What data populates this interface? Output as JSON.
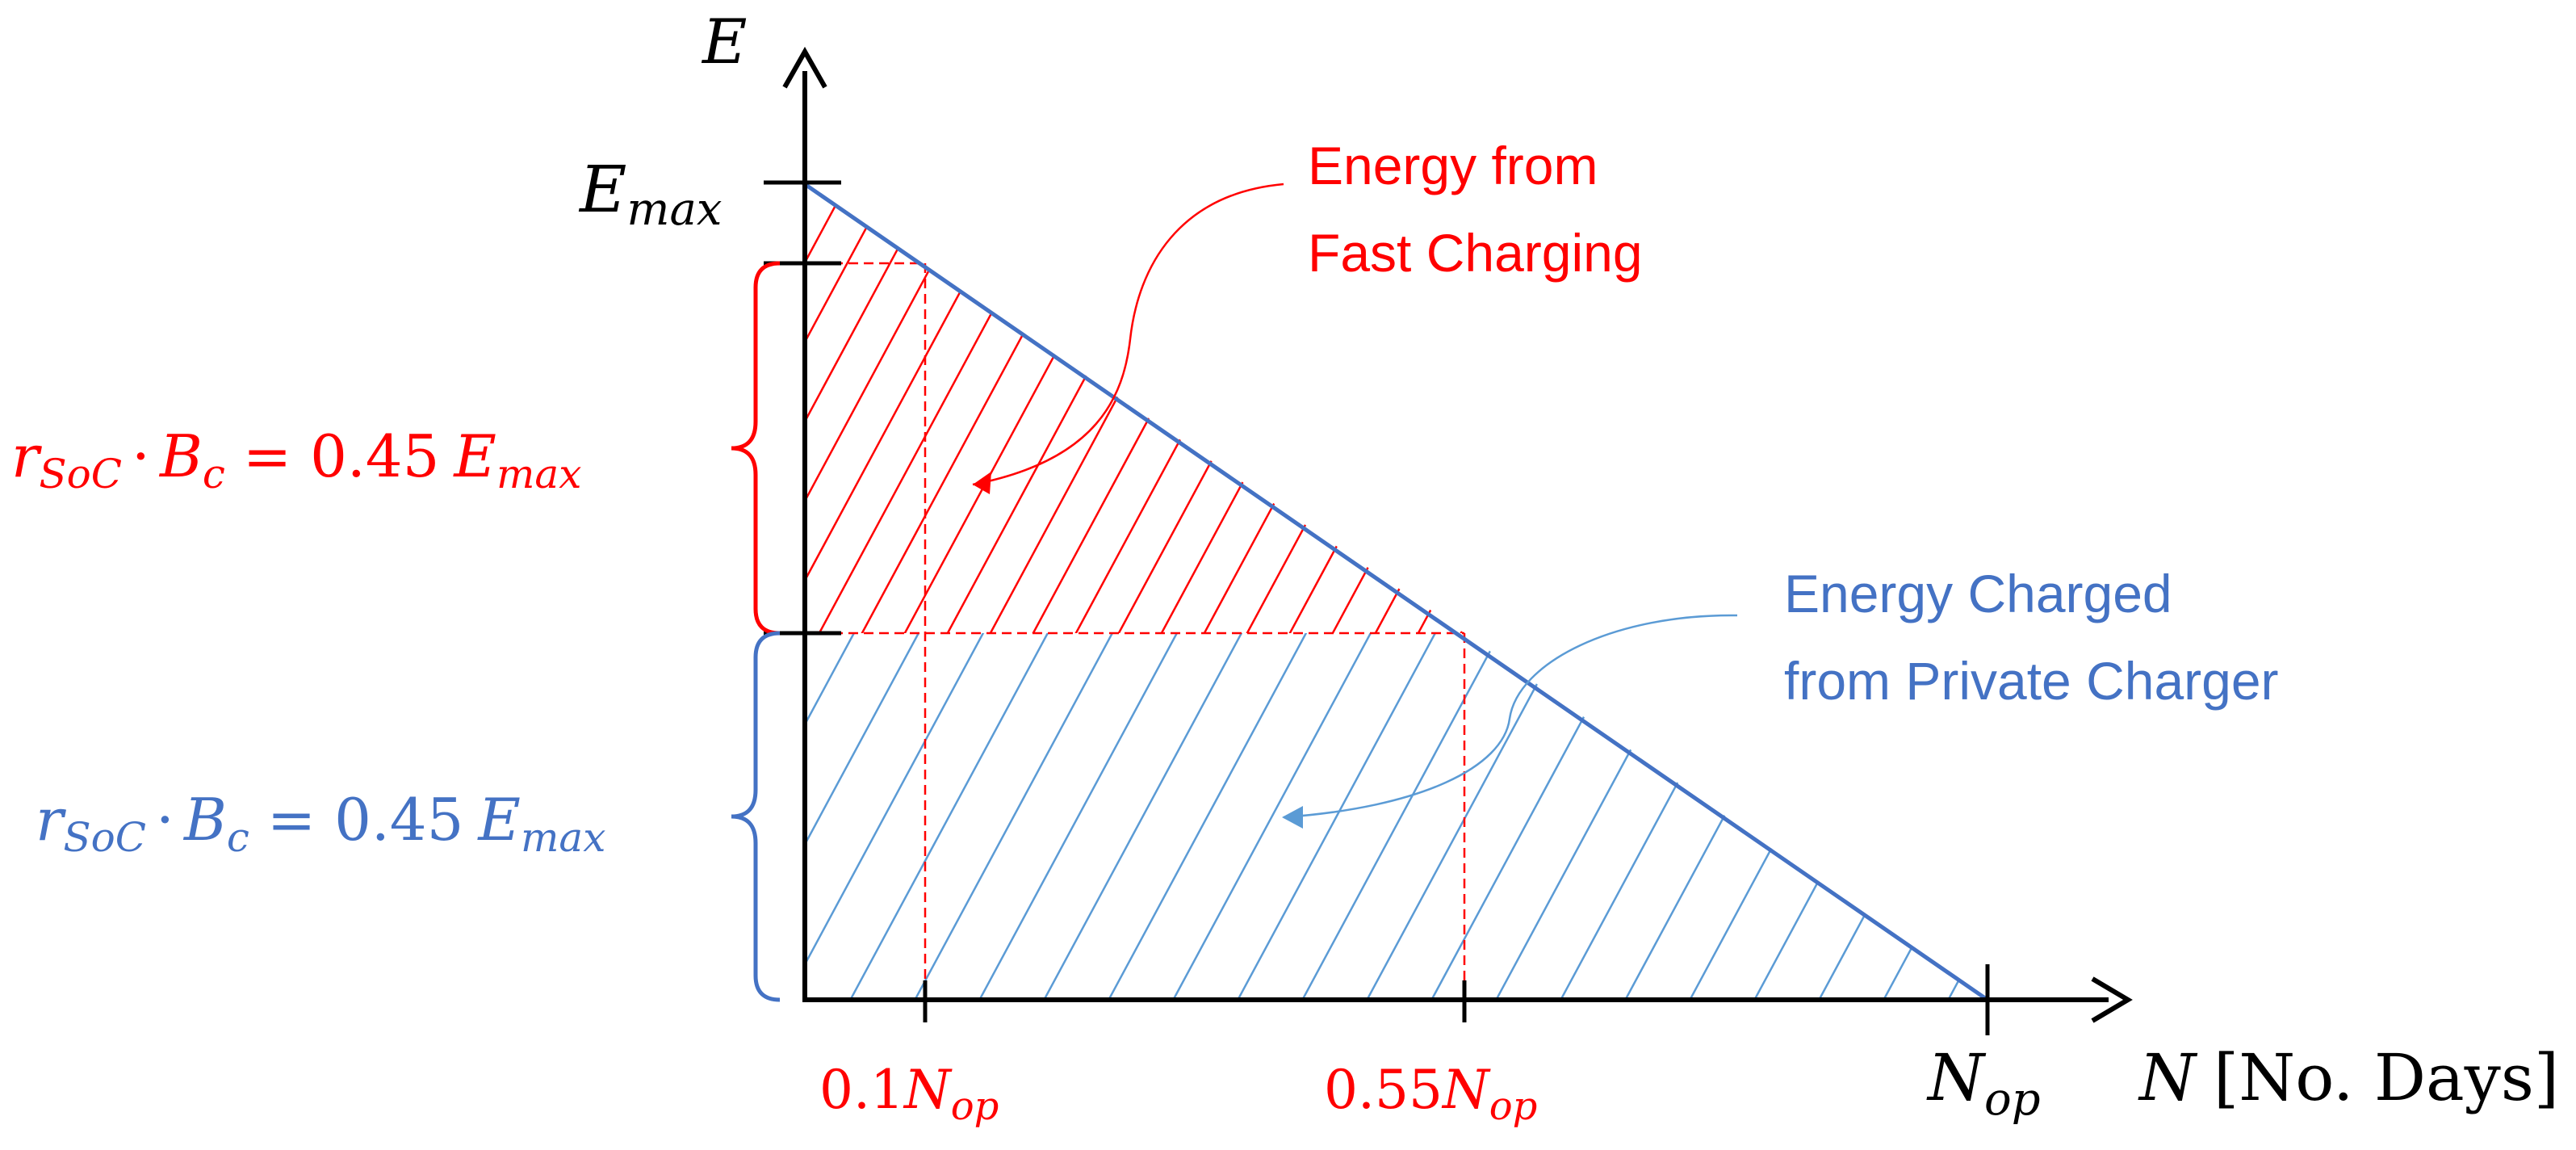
{
  "colors": {
    "axis": "#000000",
    "red": "#ff0000",
    "blue": "#4472c4",
    "hatch_blue": "#5b9bd5"
  },
  "axes": {
    "y_label": "E",
    "x_label_var": "N",
    "x_label_unit": "[No. Days]"
  },
  "y_ticks": {
    "emax_base": "E",
    "emax_sub": "max"
  },
  "x_ticks": [
    {
      "coef": "0.1",
      "var": "N",
      "sub": "op"
    },
    {
      "coef": "0.55",
      "var": "N",
      "sub": "op"
    },
    {
      "coef": "",
      "var": "N",
      "sub": "op"
    }
  ],
  "brace_labels": {
    "red": {
      "r": "r",
      "r_sub": "SoC",
      "dot": "·",
      "B": "B",
      "B_sub": "c",
      "eq": "= 0.45",
      "E": "E",
      "E_sub": "max"
    },
    "blue": {
      "r": "r",
      "r_sub": "SoC",
      "dot": "·",
      "B": "B",
      "B_sub": "c",
      "eq": "= 0.45",
      "E": "E",
      "E_sub": "max"
    }
  },
  "annotations": {
    "fast_charging": [
      "Energy from",
      "Fast Charging"
    ],
    "private_charger": [
      "Energy Charged",
      "from Private Charger"
    ]
  }
}
